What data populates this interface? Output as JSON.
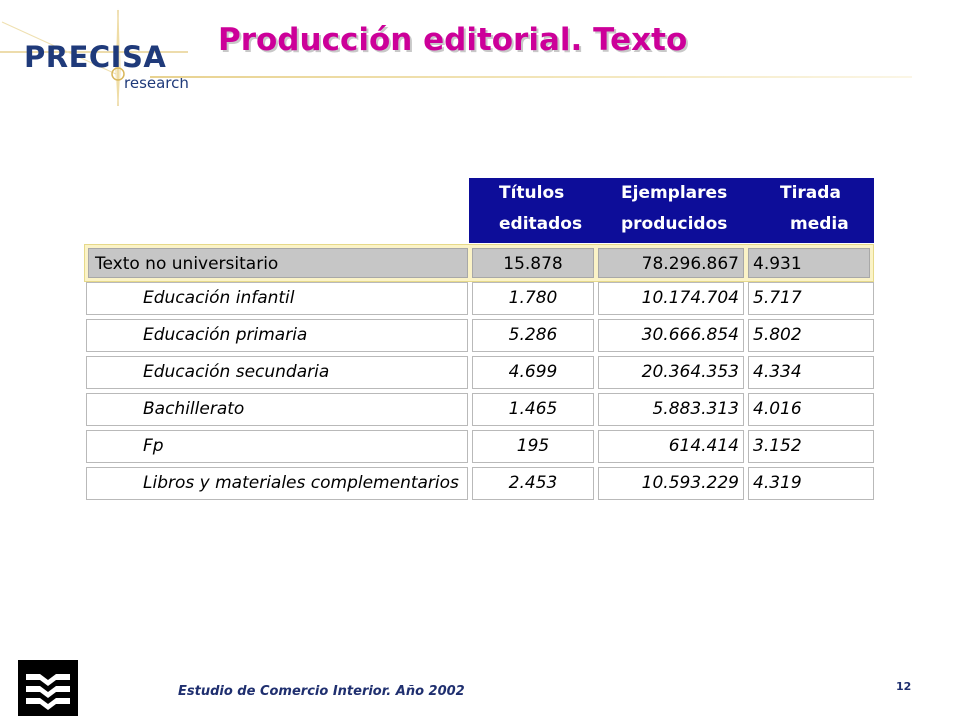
{
  "logo": {
    "brand": "PRECISA",
    "sub": "research"
  },
  "title": "Producción editorial. Texto",
  "table": {
    "headers": [
      {
        "line1": "Títulos",
        "line2": "editados"
      },
      {
        "line1": "Ejemplares",
        "line2": "producidos"
      },
      {
        "line1": "Tirada",
        "line2": "media"
      }
    ],
    "main_row": {
      "label": "Texto no universitario",
      "titulos": "15.878",
      "ejemplares": "78.296.867",
      "tirada": "4.931"
    },
    "rows": [
      {
        "label": "Educación infantil",
        "titulos": "1.780",
        "ejemplares": "10.174.704",
        "tirada": "5.717"
      },
      {
        "label": "Educación primaria",
        "titulos": "5.286",
        "ejemplares": "30.666.854",
        "tirada": "5.802"
      },
      {
        "label": "Educación secundaria",
        "titulos": "4.699",
        "ejemplares": "20.364.353",
        "tirada": "4.334"
      },
      {
        "label": "Bachillerato",
        "titulos": "1.465",
        "ejemplares": "5.883.313",
        "tirada": "4.016"
      },
      {
        "label": "Fp",
        "titulos": "195",
        "ejemplares": "614.414",
        "tirada": "3.152"
      },
      {
        "label": "Libros y materiales complementarios",
        "titulos": "2.453",
        "ejemplares": "10.593.229",
        "tirada": "4.319"
      }
    ]
  },
  "footer": {
    "text": "Estudio de Comercio Interior. Año 2002",
    "page_number": "12"
  },
  "colors": {
    "title": "#cc0099",
    "header_bg": "#0d0d99",
    "brand": "#1f3a7a"
  }
}
